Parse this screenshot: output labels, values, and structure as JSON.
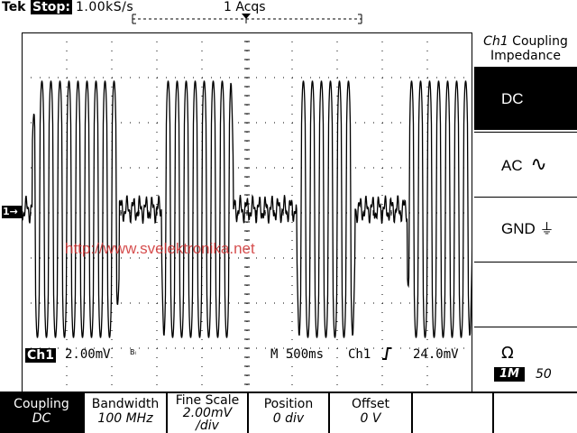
{
  "header": {
    "brand": "Tek",
    "run_state": "Stop:",
    "sample_rate": "1.00kS/s",
    "acquisitions": "1 Acqs"
  },
  "channel_marker": "1→",
  "watermark": "http://www.svelektronika.net",
  "readout": {
    "channel": "Ch1",
    "volts_per_div": "2.00mV",
    "bw_symbol": "Bₗ",
    "timebase": "M 500ms",
    "trigger_source": "Ch1",
    "trigger_slope": "↑",
    "trigger_level": "24.0mV"
  },
  "side_menu": {
    "title_channel": "Ch1",
    "title_rest": " Coupling",
    "title_line2": "Impedance",
    "options": [
      {
        "label": "DC",
        "glyph": "",
        "selected": true
      },
      {
        "label": "AC",
        "glyph": "∿",
        "selected": false
      },
      {
        "label": "GND",
        "glyph": "⏚",
        "selected": false
      }
    ],
    "impedance_symbol": "Ω",
    "impedance_selected": "1M",
    "impedance_other": "50"
  },
  "bottom_menu": [
    {
      "label": "Coupling",
      "value": "DC",
      "selected": true
    },
    {
      "label": "Bandwidth",
      "value": "100 MHz",
      "selected": false
    },
    {
      "label": "Fine Scale",
      "value": "2.00mV",
      "value2": "/div",
      "selected": false
    },
    {
      "label": "Position",
      "value": "0 div",
      "selected": false
    },
    {
      "label": "Offset",
      "value": "0 V",
      "selected": false
    }
  ],
  "waveform": {
    "bursts_time_ms": [
      [
        120,
        1080
      ],
      [
        1550,
        2350
      ],
      [
        3050,
        3700
      ],
      [
        4280,
        5000
      ]
    ],
    "burst_frequency_hz": 10,
    "color": "#000000"
  },
  "colors": {
    "background": "#ffffff",
    "foreground": "#000000",
    "watermark": "#d03030"
  }
}
